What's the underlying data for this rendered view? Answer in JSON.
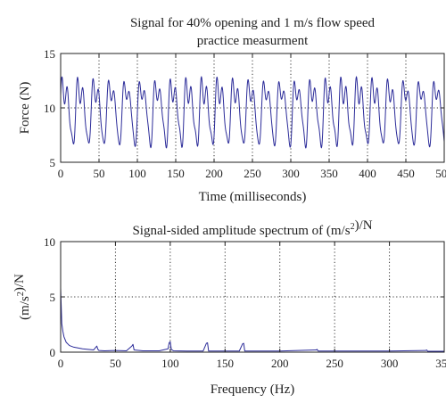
{
  "colors": {
    "series": "#2b2b99",
    "axes": "#222222",
    "grid": "#333333",
    "background": "#ffffff"
  },
  "chart_data": [
    {
      "type": "line",
      "title": [
        "Signal for 40% opening and 1 m/s flow speed",
        "practice measurment"
      ],
      "xlabel": "Time (milliseconds)",
      "ylabel": "Force (N)",
      "xlim": [
        0,
        500
      ],
      "ylim": [
        5,
        15
      ],
      "xticks": [
        0,
        50,
        100,
        150,
        200,
        250,
        300,
        350,
        400,
        450,
        500
      ],
      "yticks": [
        5,
        10,
        15
      ],
      "grid": "dotted",
      "series": [
        {
          "period_ms": 20.2,
          "min": 6.2,
          "max": 13.5,
          "x": [
            0,
            5,
            10,
            15,
            20,
            25,
            30,
            35,
            40,
            45,
            50,
            55,
            60,
            65,
            70,
            75,
            80,
            85,
            90,
            95,
            100,
            105,
            110,
            115,
            120,
            125,
            130,
            135,
            140,
            145,
            150,
            155,
            160,
            165,
            170,
            175,
            180,
            185,
            190,
            195,
            200,
            205,
            210,
            215,
            220,
            225,
            230,
            235,
            240,
            245,
            250,
            255,
            260,
            265,
            270,
            275,
            280,
            285,
            290,
            295,
            300,
            305,
            310,
            315,
            320,
            325,
            330,
            335,
            340,
            345,
            350,
            355,
            360,
            365,
            370,
            375,
            380,
            385,
            390,
            395,
            400,
            405,
            410,
            415,
            420,
            425,
            430,
            435,
            440,
            445,
            450,
            455,
            460,
            465,
            470,
            475,
            480,
            485,
            490,
            495,
            500
          ],
          "y": [
            10.9,
            7.2,
            9.5,
            12.6,
            8.4,
            6.9,
            10.8,
            12.9,
            7.6,
            8.1,
            10.6,
            7.3,
            9.6,
            12.7,
            8.3,
            7.0,
            10.9,
            12.8,
            7.5,
            8.2,
            10.7,
            7.2,
            9.7,
            12.6,
            8.4,
            6.9,
            10.8,
            12.9,
            7.6,
            8.1,
            10.6,
            7.3,
            9.5,
            12.7,
            8.3,
            7.0,
            10.9,
            12.8,
            7.5,
            8.2,
            10.7,
            7.2,
            9.6,
            12.6,
            8.4,
            6.9,
            10.8,
            12.9,
            7.6,
            8.1,
            10.6,
            7.3,
            9.7,
            12.7,
            8.3,
            7.0,
            10.9,
            12.8,
            7.5,
            8.2,
            10.7,
            7.2,
            9.5,
            12.6,
            8.4,
            6.9,
            10.8,
            12.9,
            7.6,
            8.1,
            10.6,
            7.3,
            9.6,
            12.7,
            8.3,
            7.0,
            10.9,
            12.8,
            7.5,
            8.2,
            10.7,
            7.2,
            9.7,
            12.6,
            8.4,
            6.9,
            10.8,
            12.9,
            7.6,
            8.1,
            10.6,
            7.3,
            9.5,
            12.7,
            8.3,
            7.0,
            10.9,
            12.8,
            7.5,
            8.2,
            10.6
          ]
        }
      ]
    },
    {
      "type": "line",
      "title": [
        "Signal-sided amplitude spectrum of (m/s²)/N"
      ],
      "xlabel": "Frequency (Hz)",
      "ylabel": "(m/s²)/N",
      "xlim": [
        0,
        350
      ],
      "ylim": [
        0,
        10
      ],
      "xticks": [
        0,
        50,
        100,
        150,
        200,
        250,
        300,
        350
      ],
      "yticks": [
        0,
        5,
        10
      ],
      "grid": "dotted",
      "series": [
        {
          "x": [
            0,
            0.5,
            1,
            2,
            3,
            5,
            8,
            12,
            20,
            30,
            33,
            34,
            35,
            40,
            50,
            60,
            65,
            66,
            67,
            75,
            90,
            98,
            99,
            100,
            101,
            103,
            115,
            130,
            133,
            134,
            135,
            150,
            163,
            166,
            167,
            168,
            175,
            200,
            233,
            234,
            235,
            260,
            300,
            333,
            334,
            335,
            350
          ],
          "y": [
            5.8,
            4.2,
            2.6,
            1.9,
            1.4,
            0.9,
            0.6,
            0.45,
            0.3,
            0.2,
            0.55,
            0.25,
            0.15,
            0.12,
            0.15,
            0.12,
            0.55,
            0.7,
            0.2,
            0.12,
            0.12,
            0.3,
            0.85,
            0.95,
            0.25,
            0.12,
            0.1,
            0.1,
            0.8,
            0.85,
            0.1,
            0.1,
            0.1,
            0.75,
            0.8,
            0.1,
            0.1,
            0.1,
            0.2,
            0.25,
            0.1,
            0.1,
            0.1,
            0.15,
            0.2,
            0.08,
            0.08
          ]
        }
      ]
    }
  ]
}
